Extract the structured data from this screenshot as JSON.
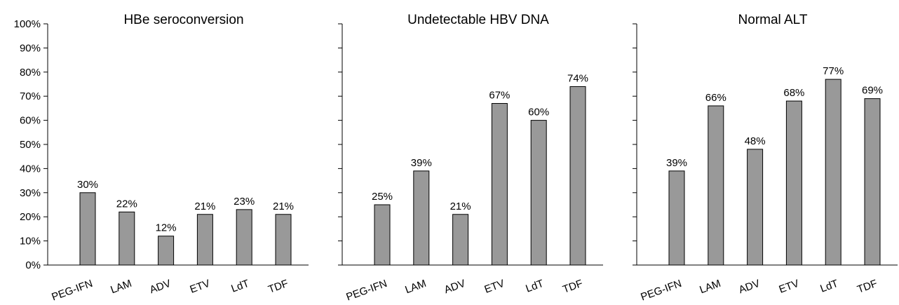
{
  "chart_data": [
    {
      "type": "bar",
      "title": "HBe seroconversion",
      "categories": [
        "PEG-IFN",
        "LAM",
        "ADV",
        "ETV",
        "LdT",
        "TDF"
      ],
      "values": [
        30,
        22,
        12,
        21,
        23,
        21
      ],
      "value_labels": [
        "30%",
        "22%",
        "12%",
        "21%",
        "23%",
        "21%"
      ],
      "color": "#999999",
      "ylim": [
        0,
        100
      ],
      "yticks": [
        {
          "value": 0,
          "label": "0%"
        },
        {
          "value": 10,
          "label": "10%"
        },
        {
          "value": 20,
          "label": "20%"
        },
        {
          "value": 30,
          "label": "30%"
        },
        {
          "value": 40,
          "label": "40%"
        },
        {
          "value": 50,
          "label": "50%"
        },
        {
          "value": 60,
          "label": "60%"
        },
        {
          "value": 70,
          "label": "70%"
        },
        {
          "value": 80,
          "label": "80%"
        },
        {
          "value": 90,
          "label": "90%"
        },
        {
          "value": 100,
          "label": "100%"
        }
      ]
    },
    {
      "type": "bar",
      "title": "Undetectable HBV DNA",
      "categories": [
        "PEG-IFN",
        "LAM",
        "ADV",
        "ETV",
        "LdT",
        "TDF"
      ],
      "values": [
        25,
        39,
        21,
        67,
        60,
        74
      ],
      "value_labels": [
        "25%",
        "39%",
        "21%",
        "67%",
        "60%",
        "74%"
      ],
      "color": "#999999",
      "ylim": [
        0,
        100
      ],
      "yticks": [
        0,
        10,
        20,
        30,
        40,
        50,
        60,
        70,
        80,
        90,
        100
      ]
    },
    {
      "type": "bar",
      "title": "Normal ALT",
      "categories": [
        "PEG-IFN",
        "LAM",
        "ADV",
        "ETV",
        "LdT",
        "TDF"
      ],
      "values": [
        39,
        66,
        48,
        68,
        77,
        69
      ],
      "value_labels": [
        "39%",
        "66%",
        "48%",
        "68%",
        "77%",
        "69%"
      ],
      "color": "#999999",
      "ylim": [
        0,
        100
      ],
      "yticks": [
        0,
        10,
        20,
        30,
        40,
        50,
        60,
        70,
        80,
        90,
        100
      ]
    }
  ]
}
